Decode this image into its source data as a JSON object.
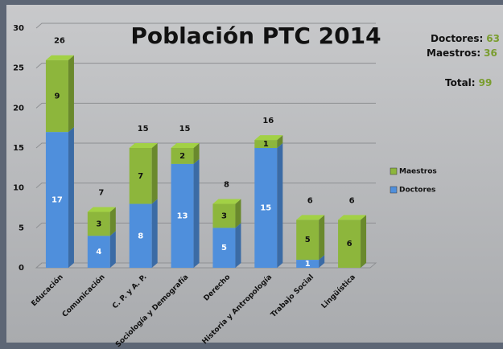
{
  "chart_data": {
    "type": "bar3d_stacked",
    "title": "Población PTC 2014",
    "categories": [
      "Educación",
      "Comunicación",
      "C. P. y A. P.",
      "Sociología y Demografía",
      "Derecho",
      "Historia y Antropología",
      "Trabajo Social",
      "Lingüística"
    ],
    "series": [
      {
        "name": "Doctores",
        "color": "#4f8fdc",
        "values": [
          17,
          4,
          8,
          13,
          5,
          15,
          1,
          0
        ]
      },
      {
        "name": "Maestros",
        "color": "#8db63c",
        "values": [
          9,
          3,
          7,
          2,
          3,
          1,
          5,
          6
        ]
      }
    ],
    "totals": [
      26,
      7,
      15,
      15,
      8,
      16,
      6,
      6
    ],
    "ylim": [
      0,
      30
    ],
    "yticks": [
      0,
      5,
      10,
      15,
      20,
      25,
      30
    ],
    "grid": true,
    "summary": [
      {
        "label": "Doctores:",
        "value": 63
      },
      {
        "label": "Maestros:",
        "value": 36
      },
      {
        "label": "Total:",
        "value": 99
      }
    ]
  }
}
